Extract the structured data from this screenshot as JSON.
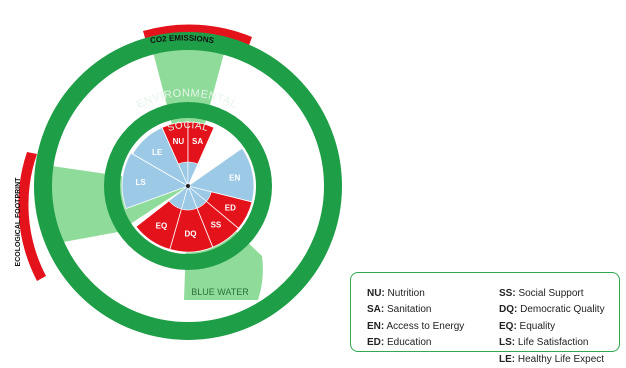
{
  "colors": {
    "ring": "#1f9e48",
    "ring_text": "#e6f5ea",
    "overshoot": "#e3121b",
    "environmental_wedge": "#8fdc9a",
    "social_shortfall": "#9cc9e6",
    "social_achieved": "#e3121b",
    "inner_fill": "#ffffff",
    "legend_border": "#2fa84f"
  },
  "rings": {
    "environmental_label": "ENVIRONMENTAL",
    "social_label": "SOCIAL"
  },
  "environmental_boundaries": [
    {
      "label": "CO2 EMISSIONS",
      "overshoot": true
    },
    {
      "label": "ECOLOGICAL FOOTPRINT",
      "overshoot": true
    },
    {
      "label": "BLUE WATER",
      "overshoot": false
    }
  ],
  "social_sectors": [
    {
      "abbr": "NU",
      "achievement": "full"
    },
    {
      "abbr": "SA",
      "achievement": "full"
    },
    {
      "abbr": "EN",
      "achievement": "shortfall"
    },
    {
      "abbr": "ED",
      "achievement": "full"
    },
    {
      "abbr": "SS",
      "achievement": "full"
    },
    {
      "abbr": "DQ",
      "achievement": "full"
    },
    {
      "abbr": "EQ",
      "achievement": "full"
    },
    {
      "abbr": "LS",
      "achievement": "shortfall"
    },
    {
      "abbr": "LE",
      "achievement": "shortfall"
    }
  ],
  "legend": {
    "left": [
      {
        "abbr": "NU:",
        "desc": " Nutrition"
      },
      {
        "abbr": "SA:",
        "desc": " Sanitation"
      },
      {
        "abbr": "EN:",
        "desc": " Access to Energy"
      },
      {
        "abbr": "ED:",
        "desc": " Education"
      }
    ],
    "right": [
      {
        "abbr": "SS:",
        "desc": " Social Support"
      },
      {
        "abbr": "DQ:",
        "desc": " Democratic Quality"
      },
      {
        "abbr": "EQ:",
        "desc": " Equality"
      },
      {
        "abbr": "LS:",
        "desc": " Life Satisfaction"
      },
      {
        "abbr": "LE:",
        "desc": " Healthy Life Expect"
      }
    ]
  }
}
